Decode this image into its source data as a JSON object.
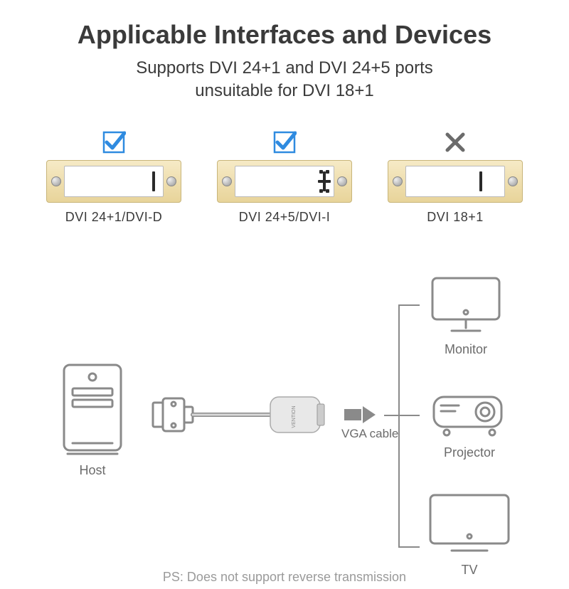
{
  "title": "Applicable Interfaces and Devices",
  "subtitle_line1": "Supports DVI 24+1 and DVI 24+5 ports",
  "subtitle_line2": "unsuitable for DVI 18+1",
  "colors": {
    "check": "#2f8be0",
    "cross": "#6b6b6b",
    "text": "#3a3a3a",
    "muted": "#6b6b6b",
    "stroke": "#8a8a8a",
    "gold_light": "#f6eac6",
    "gold_dark": "#e8d49a"
  },
  "ports": [
    {
      "id": "dvi-d",
      "label": "DVI 24+1/DVI-D",
      "mark": "check",
      "slot": "bar",
      "main_cols": 8
    },
    {
      "id": "dvi-i",
      "label": "DVI 24+5/DVI-I",
      "mark": "check",
      "slot": "plus_corners",
      "main_cols": 8
    },
    {
      "id": "dvi-18",
      "label": "DVI 18+1",
      "mark": "cross",
      "slot": "bar",
      "main_cols": 3,
      "split": true
    }
  ],
  "diagram": {
    "host_label": "Host",
    "vga_label": "VGA cable",
    "outputs": [
      {
        "id": "monitor",
        "label": "Monitor"
      },
      {
        "id": "projector",
        "label": "Projector"
      },
      {
        "id": "tv",
        "label": "TV"
      }
    ]
  },
  "footnote": "PS: Does not support reverse transmission"
}
